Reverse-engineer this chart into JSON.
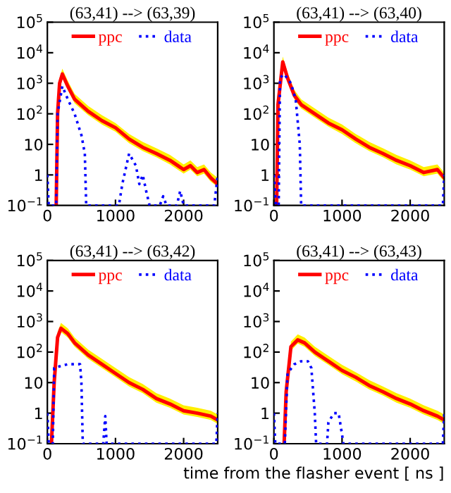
{
  "chart_data": [
    {
      "type": "line",
      "title": "(63,41) --> (63,39)",
      "log": "y",
      "xlim": [
        0,
        2500
      ],
      "xticks": [
        0,
        1000,
        2000
      ],
      "ylim": [
        0.1,
        100000
      ],
      "yticks": [
        {
          "value": 0.1,
          "label": "10$^{−1}$"
        },
        1,
        10,
        {
          "value": 100,
          "label": "10$^{2}$"
        },
        {
          "value": 1000,
          "label": "10$^{3}$"
        },
        {
          "value": 10000,
          "label": "10$^{4}$"
        },
        {
          "value": 100000,
          "label": "10$^{5}$"
        }
      ],
      "grid": false,
      "legend": "top",
      "marker": "none",
      "series": [
        {
          "name": "ppc",
          "color": "#ff0000",
          "line_style": "solid",
          "x": [
            130,
            150,
            180,
            220,
            300,
            400,
            600,
            800,
            1000,
            1200,
            1400,
            1600,
            1800,
            2000,
            2100,
            2200,
            2300,
            2400,
            2500
          ],
          "values": [
            0.1,
            100,
            1000,
            2000,
            800,
            300,
            120,
            60,
            35,
            15,
            8,
            5,
            3,
            1.5,
            2,
            1.2,
            1.5,
            0.8,
            0.5
          ],
          "upper": [
            0.1,
            150,
            1500,
            3000,
            1200,
            450,
            180,
            90,
            50,
            22,
            12,
            7.5,
            4.5,
            2.2,
            3,
            1.8,
            2.2,
            1.2,
            0.8
          ],
          "lower": [
            0.1,
            75,
            750,
            1500,
            600,
            220,
            90,
            45,
            26,
            11,
            6,
            3.8,
            2.2,
            1.1,
            1.5,
            0.9,
            1.1,
            0.6,
            0.4
          ]
        },
        {
          "name": "data",
          "color": "#0000ff",
          "line_style": "dotted",
          "x": [
            0,
            20,
            130,
            150,
            220,
            300,
            400,
            500,
            550,
            570,
            1050,
            1100,
            1200,
            1300,
            1350,
            1400,
            1450,
            1500,
            1650,
            1700,
            1750,
            1900,
            1950,
            2000,
            2450,
            2500
          ],
          "values": [
            1,
            0.1,
            0.1,
            100,
            800,
            300,
            100,
            20,
            5,
            0.1,
            0.1,
            0.5,
            5,
            2,
            0.5,
            1,
            0.3,
            0.1,
            0.1,
            0.2,
            0.1,
            0.1,
            0.3,
            0.1,
            0.1,
            1
          ]
        }
      ]
    },
    {
      "type": "line",
      "title": "(63,41) --> (63,40)",
      "log": "y",
      "xlim": [
        0,
        2500
      ],
      "xticks": [
        0,
        1000,
        2000
      ],
      "ylim": [
        0.1,
        100000
      ],
      "yticks": [
        {
          "value": 0.1,
          "label": "10$^{−1}$"
        },
        1,
        10,
        {
          "value": 100,
          "label": "10$^{2}$"
        },
        {
          "value": 1000,
          "label": "10$^{3}$"
        },
        {
          "value": 10000,
          "label": "10$^{4}$"
        },
        {
          "value": 100000,
          "label": "10$^{5}$"
        }
      ],
      "grid": false,
      "legend": "top",
      "marker": "none",
      "series": [
        {
          "name": "ppc",
          "color": "#ff0000",
          "line_style": "solid",
          "x": [
            40,
            60,
            130,
            200,
            300,
            400,
            600,
            800,
            1000,
            1200,
            1400,
            1600,
            1800,
            2000,
            2200,
            2400,
            2500
          ],
          "values": [
            0.1,
            200,
            5000,
            1500,
            400,
            200,
            100,
            50,
            30,
            15,
            8,
            5,
            3,
            2,
            1.2,
            1.5,
            0.8
          ],
          "upper": [
            0.1,
            300,
            7500,
            2200,
            600,
            300,
            150,
            75,
            45,
            22,
            12,
            7.5,
            4.5,
            3,
            1.8,
            2.2,
            1.2
          ],
          "lower": [
            0.1,
            150,
            3800,
            1100,
            300,
            150,
            75,
            38,
            22,
            11,
            6,
            3.8,
            2.2,
            1.5,
            0.9,
            1.1,
            0.6
          ]
        },
        {
          "name": "data",
          "color": "#0000ff",
          "line_style": "dotted",
          "x": [
            0,
            30,
            70,
            90,
            150,
            250,
            320,
            380,
            400,
            2480,
            2500
          ],
          "values": [
            1,
            0.1,
            0.1,
            1500,
            2000,
            1000,
            300,
            10,
            0.1,
            0.1,
            1
          ]
        }
      ]
    },
    {
      "type": "line",
      "title": "(63,41) --> (63,42)",
      "log": "y",
      "xlim": [
        0,
        2500
      ],
      "xticks": [
        0,
        1000,
        2000
      ],
      "ylim": [
        0.1,
        100000
      ],
      "yticks": [
        {
          "value": 0.1,
          "label": "10$^{−1}$"
        },
        1,
        10,
        {
          "value": 100,
          "label": "10$^{2}$"
        },
        {
          "value": 1000,
          "label": "10$^{3}$"
        },
        {
          "value": 10000,
          "label": "10$^{4}$"
        },
        {
          "value": 100000,
          "label": "10$^{5}$"
        }
      ],
      "grid": false,
      "legend": "top",
      "marker": "none",
      "series": [
        {
          "name": "ppc",
          "color": "#ff0000",
          "line_style": "solid",
          "x": [
            60,
            100,
            150,
            200,
            300,
            400,
            600,
            800,
            1000,
            1200,
            1400,
            1600,
            1800,
            2000,
            2200,
            2400,
            2500
          ],
          "values": [
            0.1,
            10,
            300,
            600,
            400,
            200,
            80,
            40,
            20,
            10,
            6,
            3,
            2,
            1.2,
            1,
            0.8,
            0.6
          ],
          "upper": [
            0.1,
            15,
            450,
            900,
            600,
            300,
            120,
            60,
            30,
            15,
            9,
            4.5,
            3,
            1.8,
            1.5,
            1.2,
            0.9
          ],
          "lower": [
            0.1,
            7.5,
            220,
            450,
            300,
            150,
            60,
            30,
            15,
            7.5,
            4.5,
            2.2,
            1.5,
            0.9,
            0.75,
            0.6,
            0.45
          ]
        },
        {
          "name": "data",
          "color": "#0000ff",
          "line_style": "dotted",
          "x": [
            0,
            20,
            80,
            100,
            200,
            300,
            480,
            500,
            520,
            820,
            850,
            870,
            2480,
            2500
          ],
          "values": [
            1,
            0.1,
            0.1,
            30,
            35,
            40,
            40,
            10,
            0.1,
            0.1,
            0.8,
            0.1,
            0.1,
            1
          ]
        }
      ]
    },
    {
      "type": "line",
      "title": "(63,41) --> (63,43)",
      "xlabel": "time from the flasher event [ ns ]",
      "log": "y",
      "xlim": [
        0,
        2500
      ],
      "xticks": [
        0,
        1000,
        2000
      ],
      "ylim": [
        0.1,
        100000
      ],
      "yticks": [
        {
          "value": 0.1,
          "label": "10$^{−1}$"
        },
        1,
        10,
        {
          "value": 100,
          "label": "10$^{2}$"
        },
        {
          "value": 1000,
          "label": "10$^{3}$"
        },
        {
          "value": 10000,
          "label": "10$^{4}$"
        },
        {
          "value": 100000,
          "label": "10$^{5}$"
        }
      ],
      "grid": false,
      "legend": "top",
      "marker": "none",
      "series": [
        {
          "name": "ppc",
          "color": "#ff0000",
          "line_style": "solid",
          "x": [
            150,
            180,
            250,
            350,
            450,
            600,
            800,
            1000,
            1200,
            1400,
            1600,
            1800,
            2000,
            2200,
            2400,
            2500
          ],
          "values": [
            0.1,
            5,
            150,
            250,
            200,
            100,
            50,
            25,
            15,
            8,
            5,
            3,
            2,
            1.2,
            0.8,
            0.6
          ],
          "upper": [
            0.1,
            7.5,
            220,
            380,
            300,
            150,
            75,
            38,
            22,
            12,
            7.5,
            4.5,
            3,
            1.8,
            1.2,
            0.9
          ],
          "lower": [
            0.1,
            3.8,
            110,
            190,
            150,
            75,
            38,
            19,
            11,
            6,
            3.8,
            2.2,
            1.5,
            0.9,
            0.6,
            0.45
          ]
        },
        {
          "name": "data",
          "color": "#0000ff",
          "line_style": "dotted",
          "x": [
            0,
            20,
            160,
            200,
            300,
            400,
            500,
            550,
            600,
            620,
            780,
            800,
            880,
            950,
            1000,
            1020,
            2480,
            2500
          ],
          "values": [
            1,
            0.1,
            0.1,
            20,
            40,
            50,
            50,
            30,
            1,
            0.1,
            0.1,
            0.5,
            1,
            1,
            0.2,
            0.1,
            0.1,
            1
          ]
        }
      ]
    }
  ]
}
